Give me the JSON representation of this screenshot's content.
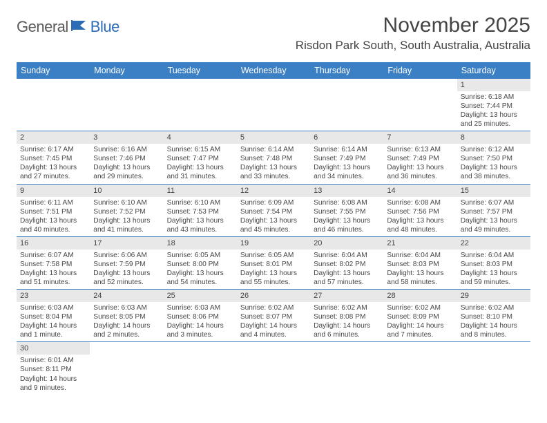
{
  "logo": {
    "general": "General",
    "blue": "Blue"
  },
  "title": "November 2025",
  "location": "Risdon Park South, South Australia, Australia",
  "colors": {
    "header_bg": "#3b7fc4",
    "daybar_bg": "#e8e8e8",
    "text": "#474747"
  },
  "weekdays": [
    "Sunday",
    "Monday",
    "Tuesday",
    "Wednesday",
    "Thursday",
    "Friday",
    "Saturday"
  ],
  "weeks": [
    [
      {
        "n": "",
        "sr": "",
        "ss": "",
        "dl": ""
      },
      {
        "n": "",
        "sr": "",
        "ss": "",
        "dl": ""
      },
      {
        "n": "",
        "sr": "",
        "ss": "",
        "dl": ""
      },
      {
        "n": "",
        "sr": "",
        "ss": "",
        "dl": ""
      },
      {
        "n": "",
        "sr": "",
        "ss": "",
        "dl": ""
      },
      {
        "n": "",
        "sr": "",
        "ss": "",
        "dl": ""
      },
      {
        "n": "1",
        "sr": "Sunrise: 6:18 AM",
        "ss": "Sunset: 7:44 PM",
        "dl": "Daylight: 13 hours and 25 minutes."
      }
    ],
    [
      {
        "n": "2",
        "sr": "Sunrise: 6:17 AM",
        "ss": "Sunset: 7:45 PM",
        "dl": "Daylight: 13 hours and 27 minutes."
      },
      {
        "n": "3",
        "sr": "Sunrise: 6:16 AM",
        "ss": "Sunset: 7:46 PM",
        "dl": "Daylight: 13 hours and 29 minutes."
      },
      {
        "n": "4",
        "sr": "Sunrise: 6:15 AM",
        "ss": "Sunset: 7:47 PM",
        "dl": "Daylight: 13 hours and 31 minutes."
      },
      {
        "n": "5",
        "sr": "Sunrise: 6:14 AM",
        "ss": "Sunset: 7:48 PM",
        "dl": "Daylight: 13 hours and 33 minutes."
      },
      {
        "n": "6",
        "sr": "Sunrise: 6:14 AM",
        "ss": "Sunset: 7:49 PM",
        "dl": "Daylight: 13 hours and 34 minutes."
      },
      {
        "n": "7",
        "sr": "Sunrise: 6:13 AM",
        "ss": "Sunset: 7:49 PM",
        "dl": "Daylight: 13 hours and 36 minutes."
      },
      {
        "n": "8",
        "sr": "Sunrise: 6:12 AM",
        "ss": "Sunset: 7:50 PM",
        "dl": "Daylight: 13 hours and 38 minutes."
      }
    ],
    [
      {
        "n": "9",
        "sr": "Sunrise: 6:11 AM",
        "ss": "Sunset: 7:51 PM",
        "dl": "Daylight: 13 hours and 40 minutes."
      },
      {
        "n": "10",
        "sr": "Sunrise: 6:10 AM",
        "ss": "Sunset: 7:52 PM",
        "dl": "Daylight: 13 hours and 41 minutes."
      },
      {
        "n": "11",
        "sr": "Sunrise: 6:10 AM",
        "ss": "Sunset: 7:53 PM",
        "dl": "Daylight: 13 hours and 43 minutes."
      },
      {
        "n": "12",
        "sr": "Sunrise: 6:09 AM",
        "ss": "Sunset: 7:54 PM",
        "dl": "Daylight: 13 hours and 45 minutes."
      },
      {
        "n": "13",
        "sr": "Sunrise: 6:08 AM",
        "ss": "Sunset: 7:55 PM",
        "dl": "Daylight: 13 hours and 46 minutes."
      },
      {
        "n": "14",
        "sr": "Sunrise: 6:08 AM",
        "ss": "Sunset: 7:56 PM",
        "dl": "Daylight: 13 hours and 48 minutes."
      },
      {
        "n": "15",
        "sr": "Sunrise: 6:07 AM",
        "ss": "Sunset: 7:57 PM",
        "dl": "Daylight: 13 hours and 49 minutes."
      }
    ],
    [
      {
        "n": "16",
        "sr": "Sunrise: 6:07 AM",
        "ss": "Sunset: 7:58 PM",
        "dl": "Daylight: 13 hours and 51 minutes."
      },
      {
        "n": "17",
        "sr": "Sunrise: 6:06 AM",
        "ss": "Sunset: 7:59 PM",
        "dl": "Daylight: 13 hours and 52 minutes."
      },
      {
        "n": "18",
        "sr": "Sunrise: 6:05 AM",
        "ss": "Sunset: 8:00 PM",
        "dl": "Daylight: 13 hours and 54 minutes."
      },
      {
        "n": "19",
        "sr": "Sunrise: 6:05 AM",
        "ss": "Sunset: 8:01 PM",
        "dl": "Daylight: 13 hours and 55 minutes."
      },
      {
        "n": "20",
        "sr": "Sunrise: 6:04 AM",
        "ss": "Sunset: 8:02 PM",
        "dl": "Daylight: 13 hours and 57 minutes."
      },
      {
        "n": "21",
        "sr": "Sunrise: 6:04 AM",
        "ss": "Sunset: 8:03 PM",
        "dl": "Daylight: 13 hours and 58 minutes."
      },
      {
        "n": "22",
        "sr": "Sunrise: 6:04 AM",
        "ss": "Sunset: 8:03 PM",
        "dl": "Daylight: 13 hours and 59 minutes."
      }
    ],
    [
      {
        "n": "23",
        "sr": "Sunrise: 6:03 AM",
        "ss": "Sunset: 8:04 PM",
        "dl": "Daylight: 14 hours and 1 minute."
      },
      {
        "n": "24",
        "sr": "Sunrise: 6:03 AM",
        "ss": "Sunset: 8:05 PM",
        "dl": "Daylight: 14 hours and 2 minutes."
      },
      {
        "n": "25",
        "sr": "Sunrise: 6:03 AM",
        "ss": "Sunset: 8:06 PM",
        "dl": "Daylight: 14 hours and 3 minutes."
      },
      {
        "n": "26",
        "sr": "Sunrise: 6:02 AM",
        "ss": "Sunset: 8:07 PM",
        "dl": "Daylight: 14 hours and 4 minutes."
      },
      {
        "n": "27",
        "sr": "Sunrise: 6:02 AM",
        "ss": "Sunset: 8:08 PM",
        "dl": "Daylight: 14 hours and 6 minutes."
      },
      {
        "n": "28",
        "sr": "Sunrise: 6:02 AM",
        "ss": "Sunset: 8:09 PM",
        "dl": "Daylight: 14 hours and 7 minutes."
      },
      {
        "n": "29",
        "sr": "Sunrise: 6:02 AM",
        "ss": "Sunset: 8:10 PM",
        "dl": "Daylight: 14 hours and 8 minutes."
      }
    ],
    [
      {
        "n": "30",
        "sr": "Sunrise: 6:01 AM",
        "ss": "Sunset: 8:11 PM",
        "dl": "Daylight: 14 hours and 9 minutes."
      },
      {
        "n": "",
        "sr": "",
        "ss": "",
        "dl": ""
      },
      {
        "n": "",
        "sr": "",
        "ss": "",
        "dl": ""
      },
      {
        "n": "",
        "sr": "",
        "ss": "",
        "dl": ""
      },
      {
        "n": "",
        "sr": "",
        "ss": "",
        "dl": ""
      },
      {
        "n": "",
        "sr": "",
        "ss": "",
        "dl": ""
      },
      {
        "n": "",
        "sr": "",
        "ss": "",
        "dl": ""
      }
    ]
  ]
}
